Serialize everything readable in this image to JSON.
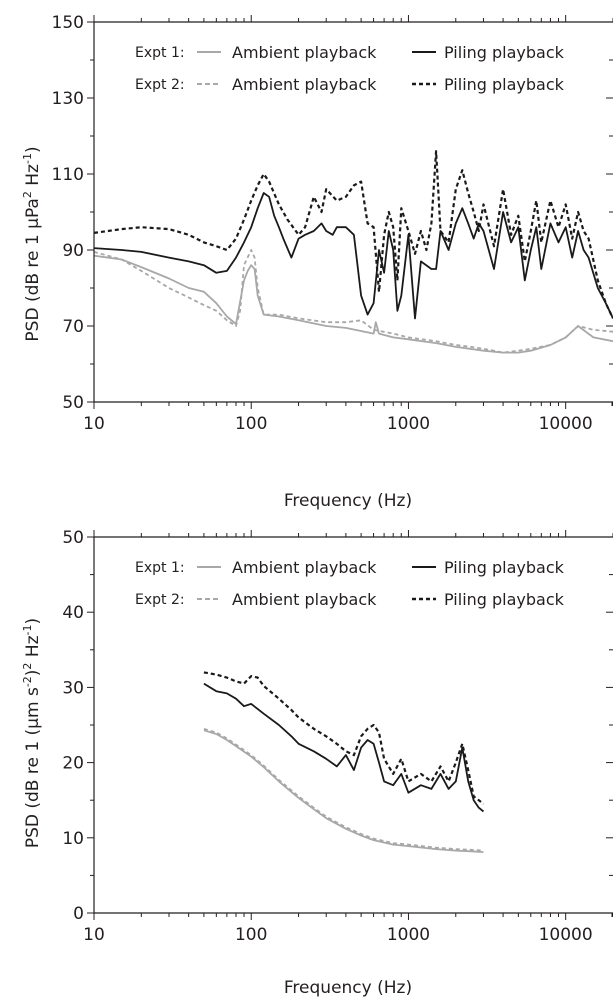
{
  "chart_data": [
    {
      "type": "line",
      "x_scale": "log",
      "xlim": [
        10,
        20000
      ],
      "ylim": [
        50,
        150
      ],
      "x_ticks": [
        "10",
        "100",
        "1000",
        "10000"
      ],
      "y_ticks": [
        "50",
        "70",
        "90",
        "110",
        "130",
        "150"
      ],
      "xlabel": "Frequency (Hz)",
      "ylabel": {
        "pre": "PSD (dB re 1 μPa",
        "exp1": "2",
        "mid": " Hz",
        "exp2": "-1",
        "post": ")"
      },
      "legend_position": "top",
      "legend": {
        "expt1_label": "Expt 1:",
        "expt2_label": "Expt 2:",
        "ambient_label": "Ambient playback",
        "piling_label": "Piling playback"
      },
      "series": [
        {
          "name": "Ambient playback",
          "experiment": "Expt 1",
          "color": "#a8a8a8",
          "dash": "solid",
          "x": [
            10,
            15,
            20,
            30,
            40,
            50,
            60,
            70,
            80,
            90,
            95,
            100,
            105,
            110,
            120,
            150,
            200,
            300,
            400,
            600,
            620,
            650,
            800,
            1000,
            1500,
            2000,
            3000,
            4000,
            5000,
            6000,
            8000,
            10000,
            12000,
            15000,
            20000
          ],
          "y": [
            88.5,
            87.5,
            85.5,
            82.5,
            80,
            79,
            76,
            72.5,
            70.5,
            82,
            84.5,
            86,
            85,
            78,
            73,
            72.5,
            71.5,
            70,
            69.5,
            68,
            71,
            68,
            67,
            66.5,
            65.5,
            64.5,
            63.5,
            63,
            63,
            63.5,
            65,
            67,
            70,
            67,
            66
          ]
        },
        {
          "name": "Ambient playback",
          "experiment": "Expt 2",
          "color": "#a8a8a8",
          "dash": "dashed",
          "x": [
            10,
            15,
            20,
            30,
            40,
            50,
            60,
            70,
            80,
            85,
            90,
            100,
            105,
            110,
            120,
            150,
            200,
            300,
            400,
            500,
            600,
            800,
            1000,
            1500,
            2000,
            2500,
            3000,
            3500,
            4000,
            5000,
            6000,
            8000,
            10000,
            12000,
            15000,
            20000
          ],
          "y": [
            89.5,
            87.5,
            84.5,
            80,
            77.5,
            75.5,
            74,
            71.5,
            70,
            74,
            86,
            90,
            88,
            80,
            73,
            73,
            72,
            71,
            71,
            71.5,
            69,
            68,
            67,
            66,
            65,
            64.5,
            64,
            63.5,
            63,
            63.5,
            64,
            65,
            67,
            70,
            69,
            68.5
          ]
        },
        {
          "name": "Piling playback",
          "experiment": "Expt 1",
          "color": "#1a1a1a",
          "dash": "solid",
          "x": [
            10,
            15,
            20,
            30,
            40,
            50,
            60,
            70,
            80,
            90,
            100,
            110,
            120,
            130,
            140,
            150,
            160,
            180,
            200,
            220,
            250,
            280,
            300,
            330,
            350,
            400,
            450,
            500,
            550,
            600,
            650,
            700,
            750,
            800,
            850,
            900,
            1000,
            1100,
            1200,
            1400,
            1500,
            1600,
            1800,
            2000,
            2200,
            2400,
            2600,
            2800,
            3000,
            3500,
            4000,
            4500,
            5000,
            5500,
            6000,
            6500,
            7000,
            8000,
            9000,
            10000,
            11000,
            12000,
            13000,
            14000,
            16000,
            18000,
            20000
          ],
          "y": [
            90.5,
            90,
            89.5,
            88,
            87,
            86,
            84,
            84.5,
            88,
            92,
            96,
            101,
            105,
            104,
            99,
            96,
            93,
            88,
            93,
            94,
            95,
            97,
            95,
            94,
            96,
            96,
            94,
            78,
            73,
            76,
            90,
            84,
            95,
            90,
            74,
            78,
            94,
            72,
            87,
            85,
            85,
            95,
            90,
            97,
            101,
            97,
            93,
            97,
            95,
            85,
            100,
            92,
            96,
            82,
            90,
            96,
            85,
            97,
            92,
            96,
            88,
            95,
            90,
            88,
            80,
            76,
            72
          ]
        },
        {
          "name": "Piling playback",
          "experiment": "Expt 2",
          "color": "#1a1a1a",
          "dash": "dashed",
          "x": [
            10,
            15,
            20,
            30,
            40,
            50,
            60,
            70,
            80,
            90,
            100,
            110,
            120,
            130,
            150,
            170,
            200,
            220,
            250,
            280,
            300,
            350,
            400,
            450,
            500,
            550,
            600,
            650,
            700,
            750,
            800,
            850,
            900,
            1000,
            1100,
            1200,
            1300,
            1400,
            1500,
            1600,
            1800,
            2000,
            2200,
            2400,
            2600,
            2800,
            3000,
            3500,
            4000,
            4500,
            5000,
            5500,
            6000,
            6500,
            7000,
            8000,
            9000,
            10000,
            11000,
            12000,
            13000,
            14000,
            16000,
            18000,
            20000
          ],
          "y": [
            94.5,
            95.5,
            96,
            95.5,
            94,
            92,
            91,
            90,
            93,
            98,
            103,
            107,
            110,
            108,
            102,
            98,
            94,
            96,
            104,
            100,
            106,
            103,
            104,
            107,
            108,
            97,
            96,
            79,
            94,
            100,
            96,
            82,
            101,
            95,
            89,
            95,
            90,
            97,
            116,
            95,
            92,
            106,
            111,
            105,
            100,
            95,
            102,
            91,
            106,
            94,
            99,
            87,
            95,
            103,
            92,
            103,
            96,
            102,
            93,
            100,
            95,
            93,
            82,
            76,
            72
          ]
        }
      ]
    },
    {
      "type": "line",
      "x_scale": "log",
      "xlim": [
        10,
        20000
      ],
      "ylim": [
        0,
        50
      ],
      "x_ticks": [
        "10",
        "100",
        "1000",
        "10000"
      ],
      "y_ticks": [
        "0",
        "10",
        "20",
        "30",
        "40",
        "50"
      ],
      "xlabel": "Frequency (Hz)",
      "ylabel": {
        "pre": "PSD (dB re 1 (μm s",
        "exp1": "-2",
        "mid": ")",
        "exp2": "2",
        "mid2": " Hz",
        "exp3": "-1",
        "post": ")"
      },
      "legend_position": "top",
      "legend": {
        "expt1_label": "Expt 1:",
        "expt2_label": "Expt 2:",
        "ambient_label": "Ambient playback",
        "piling_label": "Piling playback"
      },
      "series": [
        {
          "name": "Ambient playback",
          "experiment": "Expt 1",
          "color": "#a8a8a8",
          "dash": "solid",
          "x": [
            50,
            60,
            70,
            80,
            100,
            120,
            150,
            200,
            250,
            300,
            400,
            500,
            600,
            800,
            1000,
            1500,
            2000,
            2500,
            3000
          ],
          "y": [
            24.3,
            23.8,
            23,
            22.2,
            20.8,
            19.4,
            17.5,
            15.3,
            13.8,
            12.6,
            11.2,
            10.3,
            9.7,
            9.1,
            8.9,
            8.5,
            8.3,
            8.2,
            8.1
          ]
        },
        {
          "name": "Ambient playback",
          "experiment": "Expt 2",
          "color": "#a8a8a8",
          "dash": "dashed",
          "x": [
            50,
            60,
            70,
            80,
            100,
            120,
            150,
            200,
            250,
            300,
            400,
            500,
            600,
            800,
            1000,
            1500,
            2000,
            2500,
            3000
          ],
          "y": [
            24.5,
            24,
            23.2,
            22.4,
            21,
            19.6,
            17.7,
            15.5,
            14,
            12.8,
            11.4,
            10.5,
            9.9,
            9.3,
            9.1,
            8.7,
            8.5,
            8.4,
            8.3
          ]
        },
        {
          "name": "Piling playback",
          "experiment": "Expt 1",
          "color": "#1a1a1a",
          "dash": "solid",
          "x": [
            50,
            60,
            70,
            80,
            90,
            100,
            120,
            150,
            180,
            200,
            250,
            300,
            350,
            400,
            450,
            500,
            550,
            600,
            650,
            700,
            800,
            900,
            1000,
            1200,
            1400,
            1600,
            1800,
            2000,
            2200,
            2400,
            2600,
            2800,
            3000
          ],
          "y": [
            30.5,
            29.5,
            29.2,
            28.5,
            27.5,
            27.8,
            26.5,
            25,
            23.5,
            22.5,
            21.5,
            20.5,
            19.5,
            21,
            19,
            22,
            23,
            22.5,
            20,
            17.5,
            17,
            18.5,
            16,
            17,
            16.5,
            18.5,
            16.5,
            17.5,
            22,
            17.5,
            15,
            14,
            13.5
          ]
        },
        {
          "name": "Piling playback",
          "experiment": "Expt 2",
          "color": "#1a1a1a",
          "dash": "dashed",
          "x": [
            50,
            60,
            70,
            80,
            90,
            100,
            110,
            120,
            150,
            180,
            200,
            250,
            300,
            350,
            400,
            450,
            500,
            550,
            600,
            650,
            700,
            800,
            900,
            1000,
            1200,
            1400,
            1600,
            1800,
            2000,
            2200,
            2400,
            2600,
            2800,
            3000
          ],
          "y": [
            32,
            31.7,
            31.3,
            30.8,
            30.5,
            31.5,
            31.3,
            30.2,
            28.5,
            27,
            26,
            24.5,
            23.5,
            22.5,
            21.5,
            21,
            23.5,
            24.5,
            25,
            24,
            20.5,
            18.5,
            20.5,
            17.5,
            18.5,
            17.5,
            19.5,
            17.5,
            20,
            22.5,
            19,
            15.5,
            15,
            14.5
          ]
        }
      ]
    }
  ]
}
